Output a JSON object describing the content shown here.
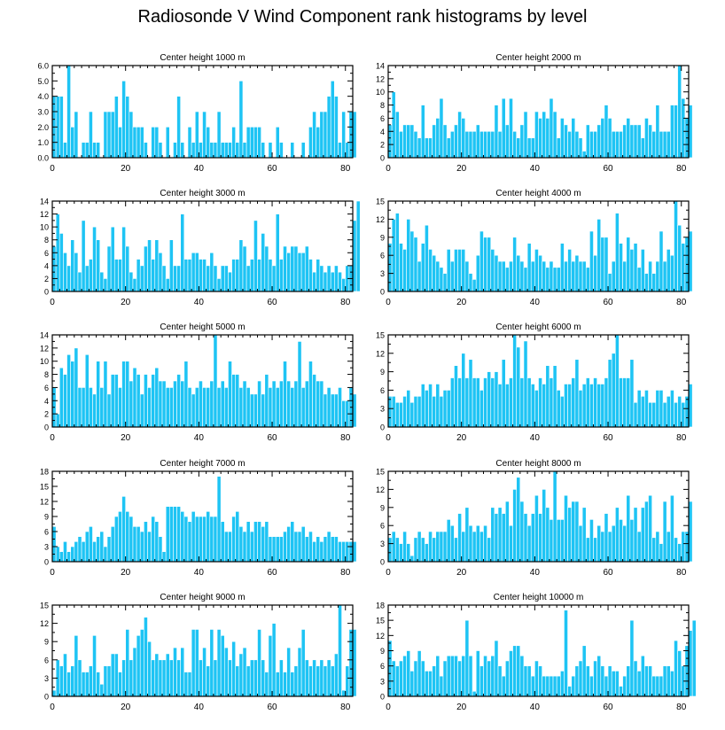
{
  "title": "Radiosonde V Wind Component rank histograms by level",
  "colors": {
    "bar_fill": "#1ec4f4",
    "bar_stroke": "#ffffff",
    "frame": "#000000"
  },
  "chart_data": [
    {
      "type": "bar",
      "title": "Center height 1000 m",
      "xlabel": "",
      "ylabel": "",
      "xlim": [
        0,
        82
      ],
      "ylim": [
        0,
        6
      ],
      "xticks": [
        0,
        20,
        40,
        60,
        80
      ],
      "yticks": [
        0.0,
        1.0,
        2.0,
        3.0,
        4.0,
        5.0,
        6.0
      ],
      "ytick_format": "fixed1",
      "values": [
        4,
        4,
        4,
        1,
        6,
        2,
        3,
        0,
        1,
        1,
        3,
        1,
        1,
        0,
        3,
        3,
        3,
        4,
        2,
        5,
        4,
        3,
        2,
        2,
        2,
        1,
        0,
        2,
        2,
        1,
        0,
        2,
        0,
        1,
        4,
        1,
        0,
        2,
        1,
        3,
        1,
        3,
        2,
        1,
        1,
        3,
        1,
        1,
        1,
        2,
        1,
        5,
        1,
        2,
        2,
        2,
        2,
        1,
        0,
        1,
        0,
        2,
        1,
        0,
        0,
        1,
        0,
        0,
        1,
        0,
        2,
        3,
        2,
        3,
        3,
        4,
        5,
        4,
        1,
        3,
        1,
        3,
        3
      ]
    },
    {
      "type": "bar",
      "title": "Center height 2000 m",
      "xlabel": "",
      "ylabel": "",
      "xlim": [
        0,
        82
      ],
      "ylim": [
        0,
        14
      ],
      "xticks": [
        0,
        20,
        40,
        60,
        80
      ],
      "yticks": [
        0,
        2,
        4,
        6,
        8,
        10,
        12,
        14
      ],
      "ytick_format": "int",
      "values": [
        5,
        10,
        7,
        4,
        5,
        5,
        5,
        4,
        3,
        8,
        3,
        3,
        5,
        6,
        9,
        5,
        3,
        4,
        5,
        7,
        6,
        4,
        4,
        4,
        5,
        4,
        4,
        4,
        4,
        8,
        4,
        9,
        5,
        9,
        4,
        3,
        5,
        7,
        3,
        3,
        7,
        6,
        7,
        6,
        9,
        7,
        3,
        6,
        5,
        4,
        6,
        4,
        3,
        1,
        5,
        4,
        4,
        5,
        6,
        8,
        6,
        4,
        4,
        4,
        5,
        6,
        5,
        5,
        5,
        3,
        6,
        5,
        4,
        8,
        4,
        4,
        4,
        8,
        8,
        14,
        9,
        6,
        8
      ]
    },
    {
      "type": "bar",
      "title": "Center height 3000 m",
      "xlabel": "",
      "ylabel": "",
      "xlim": [
        0,
        82
      ],
      "ylim": [
        0,
        14
      ],
      "xticks": [
        0,
        20,
        40,
        60,
        80
      ],
      "yticks": [
        0,
        2,
        4,
        6,
        8,
        10,
        12,
        14
      ],
      "ytick_format": "int",
      "values": [
        7,
        12,
        9,
        6,
        4,
        8,
        6,
        3,
        11,
        4,
        5,
        10,
        8,
        3,
        2,
        7,
        10,
        5,
        5,
        10,
        7,
        3,
        2,
        5,
        4,
        7,
        8,
        5,
        8,
        6,
        4,
        2,
        8,
        4,
        4,
        12,
        5,
        5,
        6,
        6,
        5,
        5,
        4,
        6,
        4,
        2,
        4,
        4,
        3,
        5,
        5,
        8,
        7,
        4,
        5,
        11,
        5,
        9,
        7,
        5,
        4,
        12,
        5,
        7,
        6,
        7,
        7,
        6,
        6,
        7,
        5,
        3,
        5,
        4,
        3,
        4,
        3,
        4,
        3,
        2,
        4,
        4,
        11,
        14
      ]
    },
    {
      "type": "bar",
      "title": "Center height 4000 m",
      "xlabel": "",
      "ylabel": "",
      "xlim": [
        0,
        82
      ],
      "ylim": [
        0,
        15
      ],
      "xticks": [
        0,
        20,
        40,
        60,
        80
      ],
      "yticks": [
        0,
        3,
        6,
        9,
        12,
        15
      ],
      "ytick_format": "int",
      "values": [
        8,
        12,
        13,
        8,
        7,
        12,
        10,
        9,
        5,
        8,
        11,
        7,
        6,
        5,
        4,
        3,
        7,
        5,
        7,
        7,
        7,
        5,
        3,
        2,
        6,
        10,
        9,
        9,
        7,
        6,
        5,
        5,
        4,
        5,
        9,
        6,
        5,
        4,
        8,
        5,
        7,
        6,
        5,
        4,
        5,
        4,
        4,
        8,
        5,
        7,
        5,
        6,
        5,
        5,
        4,
        10,
        6,
        12,
        9,
        9,
        3,
        5,
        13,
        8,
        5,
        9,
        7,
        8,
        4,
        7,
        3,
        5,
        3,
        5,
        10,
        5,
        7,
        6,
        15,
        11,
        8,
        9,
        10
      ]
    },
    {
      "type": "bar",
      "title": "Center height 5000 m",
      "xlabel": "",
      "ylabel": "",
      "xlim": [
        0,
        82
      ],
      "ylim": [
        0,
        14
      ],
      "xticks": [
        0,
        20,
        40,
        60,
        80
      ],
      "yticks": [
        0,
        2,
        4,
        6,
        8,
        10,
        12,
        14
      ],
      "ytick_format": "int",
      "values": [
        6,
        2,
        9,
        8,
        11,
        10,
        12,
        6,
        6,
        11,
        6,
        5,
        10,
        6,
        10,
        5,
        8,
        8,
        6,
        10,
        10,
        7,
        9,
        8,
        5,
        8,
        6,
        8,
        9,
        7,
        7,
        6,
        6,
        7,
        8,
        7,
        10,
        6,
        5,
        6,
        7,
        6,
        6,
        7,
        14,
        6,
        7,
        6,
        10,
        8,
        8,
        6,
        7,
        6,
        5,
        5,
        7,
        5,
        8,
        6,
        7,
        6,
        7,
        10,
        7,
        6,
        7,
        13,
        6,
        7,
        10,
        8,
        7,
        7,
        5,
        6,
        5,
        5,
        6,
        4,
        4,
        6,
        5
      ]
    },
    {
      "type": "bar",
      "title": "Center height 6000 m",
      "xlabel": "",
      "ylabel": "",
      "xlim": [
        0,
        82
      ],
      "ylim": [
        0,
        15
      ],
      "xticks": [
        0,
        20,
        40,
        60,
        80
      ],
      "yticks": [
        0,
        3,
        6,
        9,
        12,
        15
      ],
      "ytick_format": "int",
      "values": [
        5,
        5,
        4,
        4,
        5,
        6,
        4,
        5,
        5,
        7,
        6,
        7,
        5,
        7,
        5,
        6,
        6,
        8,
        10,
        8,
        12,
        8,
        11,
        8,
        8,
        6,
        8,
        9,
        8,
        9,
        7,
        11,
        7,
        8,
        15,
        13,
        8,
        14,
        8,
        7,
        6,
        8,
        7,
        10,
        8,
        10,
        6,
        5,
        7,
        7,
        8,
        11,
        6,
        7,
        8,
        7,
        8,
        7,
        7,
        8,
        11,
        12,
        15,
        8,
        8,
        8,
        11,
        4,
        6,
        5,
        6,
        4,
        4,
        6,
        6,
        4,
        5,
        6,
        4,
        5,
        4,
        5,
        7
      ]
    },
    {
      "type": "bar",
      "title": "Center height 7000 m",
      "xlabel": "",
      "ylabel": "",
      "xlim": [
        0,
        82
      ],
      "ylim": [
        0,
        18
      ],
      "xticks": [
        0,
        20,
        40,
        60,
        80
      ],
      "yticks": [
        0,
        3,
        6,
        9,
        12,
        15,
        18
      ],
      "ytick_format": "int",
      "values": [
        7,
        3,
        2,
        4,
        2,
        3,
        4,
        5,
        4,
        6,
        7,
        4,
        5,
        6,
        3,
        5,
        7,
        9,
        10,
        13,
        10,
        9,
        7,
        7,
        6,
        8,
        6,
        9,
        8,
        5,
        2,
        11,
        11,
        11,
        11,
        10,
        9,
        8,
        10,
        9,
        9,
        9,
        10,
        9,
        9,
        17,
        8,
        6,
        6,
        9,
        10,
        7,
        6,
        8,
        6,
        8,
        8,
        7,
        8,
        5,
        5,
        5,
        5,
        6,
        7,
        8,
        6,
        6,
        7,
        5,
        6,
        4,
        5,
        4,
        5,
        6,
        5,
        5,
        4,
        4,
        4,
        4,
        4
      ]
    },
    {
      "type": "bar",
      "title": "Center height 8000 m",
      "xlabel": "",
      "ylabel": "",
      "xlim": [
        0,
        82
      ],
      "ylim": [
        0,
        15
      ],
      "xticks": [
        0,
        20,
        40,
        60,
        80
      ],
      "yticks": [
        0,
        3,
        6,
        9,
        12,
        15
      ],
      "ytick_format": "int",
      "values": [
        4,
        5,
        4,
        3,
        5,
        3,
        1,
        4,
        5,
        4,
        3,
        5,
        4,
        5,
        5,
        5,
        7,
        6,
        4,
        8,
        5,
        9,
        6,
        5,
        6,
        5,
        6,
        4,
        9,
        8,
        9,
        8,
        10,
        6,
        12,
        14,
        10,
        8,
        6,
        8,
        11,
        8,
        12,
        9,
        7,
        15,
        7,
        7,
        11,
        9,
        10,
        10,
        6,
        9,
        4,
        7,
        4,
        6,
        5,
        8,
        5,
        6,
        9,
        7,
        6,
        11,
        7,
        9,
        5,
        9,
        10,
        11,
        4,
        5,
        3,
        10,
        5,
        11,
        4,
        3,
        5,
        5,
        10
      ]
    },
    {
      "type": "bar",
      "title": "Center height 9000 m",
      "xlabel": "",
      "ylabel": "",
      "xlim": [
        0,
        82
      ],
      "ylim": [
        0,
        15
      ],
      "xticks": [
        0,
        20,
        40,
        60,
        80
      ],
      "yticks": [
        0,
        3,
        6,
        9,
        12,
        15
      ],
      "ytick_format": "int",
      "values": [
        1,
        6,
        5,
        7,
        4,
        5,
        10,
        6,
        4,
        4,
        5,
        10,
        4,
        2,
        5,
        5,
        7,
        7,
        4,
        6,
        11,
        6,
        8,
        10,
        11,
        13,
        9,
        6,
        7,
        6,
        6,
        7,
        6,
        8,
        6,
        8,
        4,
        4,
        11,
        11,
        6,
        8,
        5,
        11,
        6,
        11,
        10,
        8,
        6,
        9,
        5,
        7,
        8,
        5,
        6,
        6,
        11,
        6,
        4,
        10,
        12,
        4,
        6,
        4,
        8,
        4,
        5,
        8,
        11,
        6,
        5,
        6,
        5,
        6,
        5,
        6,
        5,
        7,
        15,
        1,
        5,
        11,
        11
      ]
    },
    {
      "type": "bar",
      "title": "Center height 10000 m",
      "xlabel": "",
      "ylabel": "",
      "xlim": [
        0,
        82
      ],
      "ylim": [
        0,
        18
      ],
      "xticks": [
        0,
        20,
        40,
        60,
        80
      ],
      "yticks": [
        0,
        3,
        6,
        9,
        12,
        15,
        18
      ],
      "ytick_format": "int",
      "values": [
        11,
        7,
        6,
        7,
        8,
        9,
        5,
        7,
        9,
        7,
        5,
        5,
        6,
        8,
        4,
        7,
        8,
        8,
        8,
        7,
        8,
        15,
        8,
        1,
        9,
        6,
        8,
        7,
        8,
        11,
        6,
        4,
        7,
        9,
        10,
        10,
        8,
        6,
        6,
        4,
        7,
        6,
        4,
        4,
        4,
        4,
        4,
        5,
        17,
        2,
        4,
        6,
        7,
        10,
        6,
        4,
        7,
        8,
        6,
        4,
        6,
        5,
        5,
        2,
        4,
        6,
        15,
        7,
        5,
        8,
        6,
        6,
        4,
        4,
        4,
        6,
        6,
        5,
        11,
        9,
        6,
        10,
        13,
        15
      ]
    }
  ]
}
